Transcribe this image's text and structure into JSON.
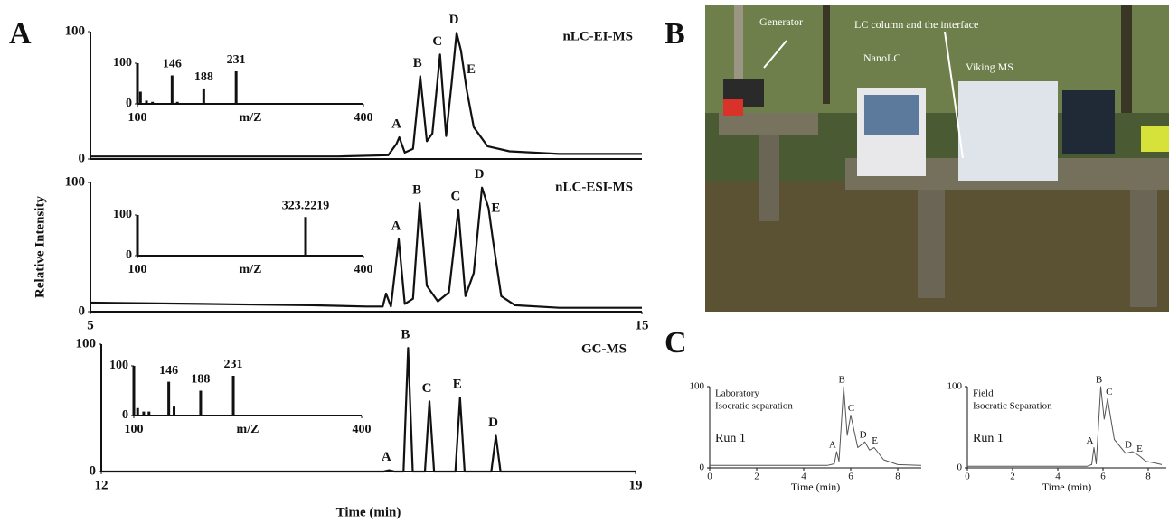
{
  "panel_labels": [
    "A",
    "B",
    "C"
  ],
  "photo": {
    "annotations": [
      "Generator",
      "LC column and the interface",
      "NanoLC",
      "Viking MS"
    ]
  },
  "chart_data": [
    {
      "type": "line",
      "title": "nLC-EI-MS",
      "color": "#111",
      "xlim": [
        5,
        15
      ],
      "ylim": [
        0,
        100
      ],
      "yticks": [
        0,
        100
      ],
      "x": [
        5,
        9.5,
        10.4,
        10.55,
        10.6,
        10.7,
        10.85,
        10.98,
        11.1,
        11.2,
        11.34,
        11.45,
        11.55,
        11.64,
        11.72,
        11.82,
        11.95,
        12.2,
        12.6,
        13.5,
        15
      ],
      "values": [
        2,
        2,
        3,
        12,
        17,
        5,
        8,
        65,
        14,
        20,
        82,
        18,
        60,
        99,
        85,
        55,
        25,
        10,
        6,
        4,
        4
      ],
      "peak_labels": [
        {
          "label": "A",
          "x": 10.6,
          "y": 17
        },
        {
          "label": "B",
          "x": 10.98,
          "y": 65
        },
        {
          "label": "C",
          "x": 11.34,
          "y": 82
        },
        {
          "label": "D",
          "x": 11.64,
          "y": 99
        },
        {
          "label": "E",
          "x": 11.95,
          "y": 60
        }
      ]
    },
    {
      "type": "bar",
      "xlabel": "m/Z",
      "color": "#111",
      "xlim": [
        100,
        400
      ],
      "ylim": [
        0,
        100
      ],
      "xticks": [
        100,
        400
      ],
      "yticks": [
        0,
        100
      ],
      "x": [
        100,
        104,
        112,
        120,
        146,
        153,
        188,
        231
      ],
      "values": [
        100,
        30,
        8,
        5,
        70,
        5,
        38,
        80
      ],
      "x_labels": [
        146,
        188,
        231
      ]
    },
    {
      "type": "line",
      "title": "nLC-ESI-MS",
      "ylabel": "Relative Intensity",
      "color": "#111",
      "xlim": [
        5,
        15
      ],
      "ylim": [
        0,
        100
      ],
      "xticks": [
        5,
        15
      ],
      "yticks": [
        0,
        100
      ],
      "x": [
        5,
        7,
        9,
        10,
        10.3,
        10.36,
        10.45,
        10.59,
        10.7,
        10.85,
        10.97,
        11.1,
        11.3,
        11.5,
        11.67,
        11.8,
        11.95,
        12.1,
        12.22,
        12.3,
        12.45,
        12.7,
        13.5,
        15
      ],
      "values": [
        7,
        6,
        5,
        4,
        4,
        14,
        4,
        56,
        6,
        10,
        84,
        20,
        8,
        15,
        79,
        12,
        30,
        96,
        80,
        55,
        12,
        5,
        3,
        3
      ],
      "peak_labels": [
        {
          "label": "A",
          "x": 10.59,
          "y": 56
        },
        {
          "label": "B",
          "x": 10.97,
          "y": 84
        },
        {
          "label": "C",
          "x": 11.67,
          "y": 79
        },
        {
          "label": "D",
          "x": 12.1,
          "y": 96
        },
        {
          "label": "E",
          "x": 12.4,
          "y": 70
        }
      ]
    },
    {
      "type": "bar",
      "xlabel": "m/Z",
      "color": "#111",
      "xlim": [
        100,
        400
      ],
      "ylim": [
        0,
        100
      ],
      "xticks": [
        100,
        400
      ],
      "yticks": [
        0,
        100
      ],
      "x": [
        100,
        323.2219
      ],
      "values": [
        100,
        95
      ],
      "x_labels": [
        {
          "value": 323.2219,
          "label": "323.2219"
        }
      ]
    },
    {
      "type": "line",
      "title": "GC-MS",
      "xlabel": "Time (min)",
      "color": "#111",
      "xlim": [
        12,
        19
      ],
      "ylim": [
        0,
        100
      ],
      "xticks": [
        12,
        19
      ],
      "yticks": [
        0,
        100
      ],
      "x": [
        12,
        15.7,
        15.77,
        15.84,
        15.96,
        16.02,
        16.08,
        16.24,
        16.3,
        16.36,
        16.64,
        16.7,
        16.76,
        17.11,
        17.17,
        17.23,
        19
      ],
      "values": [
        0,
        0,
        1,
        0,
        0,
        97,
        0,
        0,
        55,
        0,
        0,
        58,
        0,
        0,
        28,
        0,
        0
      ],
      "peak_labels": [
        {
          "label": "A",
          "x": 15.77,
          "y": 1
        },
        {
          "label": "B",
          "x": 16.02,
          "y": 97
        },
        {
          "label": "C",
          "x": 16.3,
          "y": 55
        },
        {
          "label": "E",
          "x": 16.7,
          "y": 58
        },
        {
          "label": "D",
          "x": 17.17,
          "y": 28
        }
      ]
    },
    {
      "type": "bar",
      "xlabel": "m/Z",
      "color": "#111",
      "xlim": [
        100,
        400
      ],
      "ylim": [
        0,
        100
      ],
      "xticks": [
        100,
        400
      ],
      "yticks": [
        0,
        100
      ],
      "x": [
        100,
        105,
        113,
        120,
        146,
        153,
        188,
        231
      ],
      "values": [
        100,
        15,
        8,
        8,
        68,
        18,
        50,
        80
      ],
      "x_labels": [
        146,
        188,
        231
      ]
    },
    {
      "type": "line",
      "xlabel": "Time (min)",
      "notes": [
        "Laboratory",
        "Isocratic separation",
        "Run 1"
      ],
      "color": "#555",
      "xlim": [
        0,
        9
      ],
      "ylim": [
        0,
        100
      ],
      "xticks": [
        0,
        2,
        4,
        6,
        8
      ],
      "yticks": [
        0,
        100
      ],
      "x": [
        0,
        5,
        5.3,
        5.4,
        5.5,
        5.7,
        5.85,
        6.0,
        6.3,
        6.6,
        6.8,
        7.0,
        7.4,
        8,
        9
      ],
      "values": [
        3,
        3,
        5,
        20,
        8,
        100,
        40,
        65,
        25,
        32,
        22,
        25,
        10,
        4,
        3
      ],
      "peak_labels": [
        {
          "label": "A",
          "x": 5.3,
          "y": 20
        },
        {
          "label": "B",
          "x": 5.7,
          "y": 100
        },
        {
          "label": "C",
          "x": 6.1,
          "y": 65
        },
        {
          "label": "D",
          "x": 6.6,
          "y": 32
        },
        {
          "label": "E",
          "x": 7.1,
          "y": 25
        }
      ]
    },
    {
      "type": "line",
      "xlabel": "Time (min)",
      "notes": [
        "Field",
        "Isocratic Separation",
        "Run 1"
      ],
      "color": "#555",
      "xlim": [
        0,
        8.8
      ],
      "ylim": [
        0,
        100
      ],
      "xticks": [
        0,
        2,
        4,
        6,
        8
      ],
      "yticks": [
        0,
        100
      ],
      "x": [
        0,
        5.3,
        5.5,
        5.6,
        5.7,
        5.9,
        6.05,
        6.2,
        6.5,
        7,
        7.3,
        7.6,
        7.9,
        8.3,
        8.6
      ],
      "values": [
        2,
        2,
        4,
        25,
        5,
        100,
        60,
        85,
        35,
        18,
        20,
        15,
        8,
        6,
        4
      ],
      "peak_labels": [
        {
          "label": "A",
          "x": 5.5,
          "y": 25
        },
        {
          "label": "B",
          "x": 5.9,
          "y": 100
        },
        {
          "label": "C",
          "x": 6.35,
          "y": 85
        },
        {
          "label": "D",
          "x": 7.2,
          "y": 20
        },
        {
          "label": "E",
          "x": 7.7,
          "y": 15
        }
      ]
    }
  ]
}
